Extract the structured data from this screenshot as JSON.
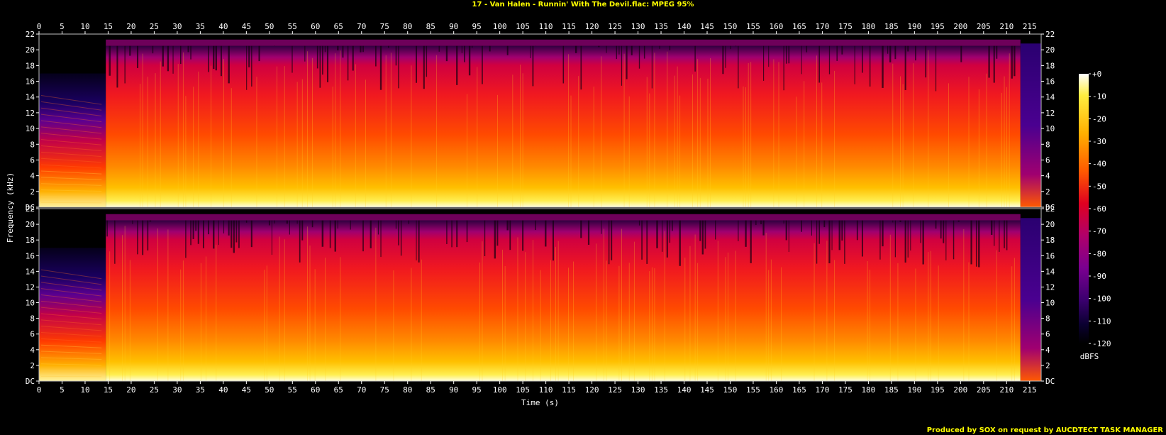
{
  "title": "17 - Van Halen - Runnin' With The Devil.flac: MPEG 95%",
  "credit": "Produced by SOX on request by AUCDTECT TASK MANAGER",
  "chart_data": {
    "type": "heatmap",
    "title": "17 - Van Halen - Runnin' With The Devil.flac: MPEG 95%",
    "xlabel": "Time (s)",
    "ylabel": "Frequency (kHz)",
    "xlim": [
      0,
      217.5
    ],
    "ylim_khz": [
      0,
      22
    ],
    "x_ticks": [
      0,
      5,
      10,
      15,
      20,
      25,
      30,
      35,
      40,
      45,
      50,
      55,
      60,
      65,
      70,
      75,
      80,
      85,
      90,
      95,
      100,
      105,
      110,
      115,
      120,
      125,
      130,
      135,
      140,
      145,
      150,
      155,
      160,
      165,
      170,
      175,
      180,
      185,
      190,
      195,
      200,
      205,
      210,
      215
    ],
    "x_tick_labels": [
      "0",
      "5",
      "10",
      "15",
      "20",
      "25",
      "30",
      "35",
      "40",
      "45",
      "50",
      "55",
      "60",
      "65",
      "70",
      "75",
      "80",
      "85",
      "90",
      "95",
      "100",
      "105",
      "110",
      "115",
      "120",
      "125",
      "130",
      "135",
      "140",
      "145",
      "150",
      "155",
      "160",
      "165",
      "170",
      "175",
      "180",
      "185",
      "190",
      "195",
      "200",
      "205",
      "210",
      "215"
    ],
    "y_tick_labels": [
      "DC",
      "2",
      "4",
      "6",
      "8",
      "10",
      "12",
      "14",
      "16",
      "18",
      "20",
      "22"
    ],
    "channels": 2,
    "colorbar": {
      "label": "dBFS",
      "range": [
        -120,
        0
      ],
      "ticks": [
        "+0",
        "-10",
        "-20",
        "-30",
        "-40",
        "-50",
        "-60",
        "-70",
        "-80",
        "-90",
        "-100",
        "-110",
        "-120"
      ],
      "colors": [
        "#000000",
        "#0a0030",
        "#3a006e",
        "#7a0090",
        "#b0006a",
        "#e00020",
        "#ff4400",
        "#ff8c00",
        "#ffc400",
        "#ffee40",
        "#ffffff"
      ]
    },
    "spectral_cutoff_khz": 20.5,
    "segments_s": [
      {
        "start": 0,
        "end": 14.5,
        "description": "fade-in, energy below 17 kHz"
      },
      {
        "start": 14.5,
        "end": 213,
        "description": "full band to ~20.5 kHz"
      },
      {
        "start": 213,
        "end": 217.5,
        "description": "fade-out"
      }
    ]
  }
}
